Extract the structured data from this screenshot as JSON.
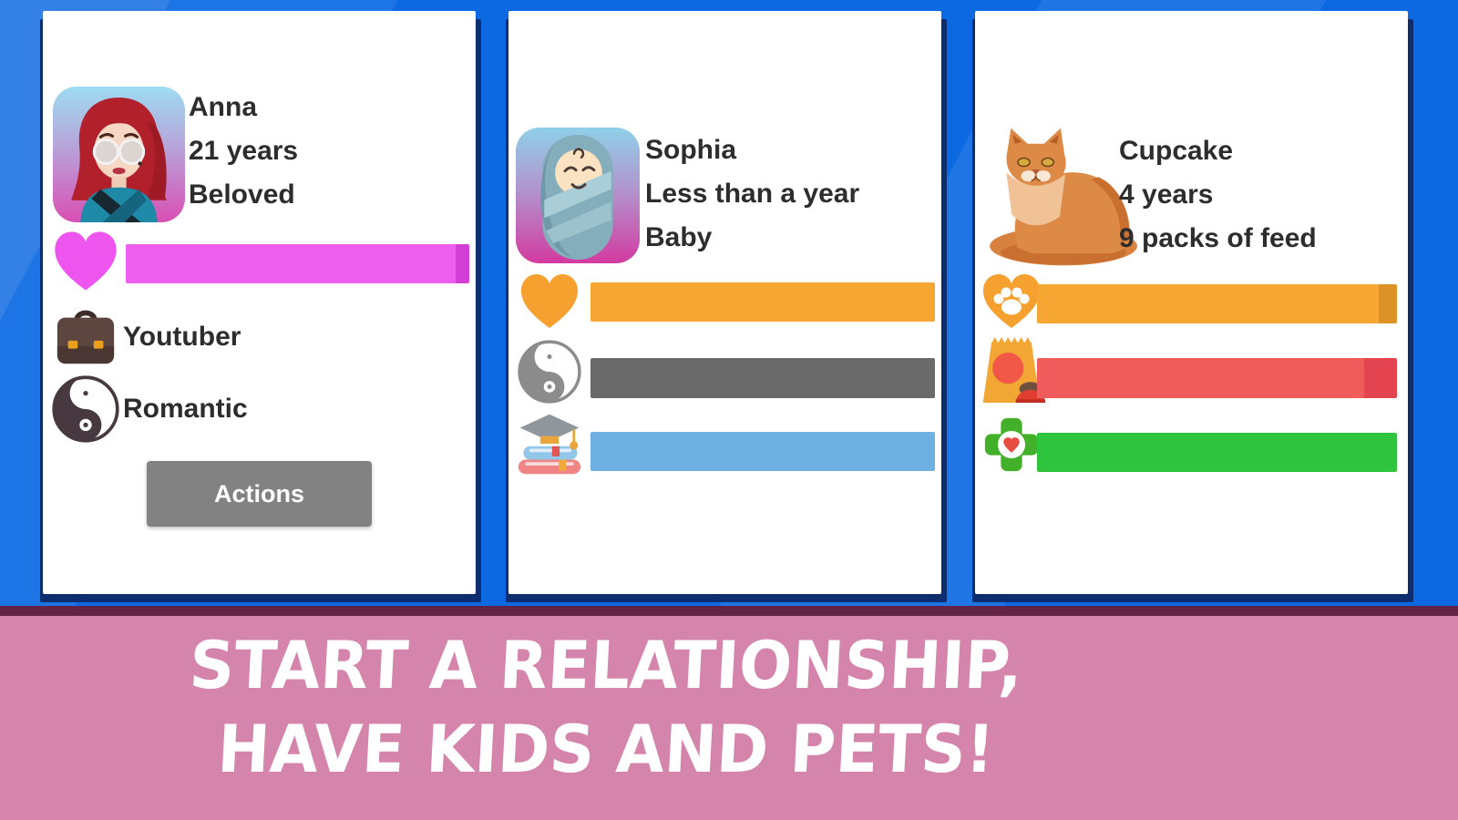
{
  "background": {
    "base_color": "#0c69e2",
    "card_shadow_color": "#0e2d6e"
  },
  "cards": [
    {
      "type": "partner",
      "avatar": "woman-avatar",
      "name": "Anna",
      "age": "21 years",
      "status": "Beloved",
      "stats": [
        {
          "icon": "heart-icon",
          "name": "love",
          "percent": 96,
          "color": "#ee5ff0",
          "cap_color": "#d33fd6"
        }
      ],
      "attributes": [
        {
          "icon": "briefcase-icon",
          "label": "Youtuber"
        },
        {
          "icon": "yin-yang-icon",
          "label": "Romantic"
        }
      ],
      "button_label": "Actions"
    },
    {
      "type": "child",
      "avatar": "baby-avatar",
      "name": "Sophia",
      "age": "Less than a year",
      "status": "Baby",
      "stats": [
        {
          "icon": "heart-icon",
          "name": "love",
          "percent": 100,
          "color": "#f6a733"
        },
        {
          "icon": "yin-yang-icon",
          "name": "mood",
          "percent": 100,
          "color": "#6a6a6a"
        },
        {
          "icon": "education-icon",
          "name": "education",
          "percent": 100,
          "color": "#6fb0e2"
        }
      ]
    },
    {
      "type": "pet",
      "avatar": "cat-illustration",
      "name": "Cupcake",
      "age": "4 years",
      "status": "9 packs of feed",
      "stats": [
        {
          "icon": "paw-heart-icon",
          "name": "happiness",
          "percent": 95,
          "color": "#f6a733",
          "cap_color": "#dd9226"
        },
        {
          "icon": "feed-bag-icon",
          "name": "food",
          "percent": 91,
          "color": "#f05b5b",
          "cap_color": "#e4444f"
        },
        {
          "icon": "vet-cross-icon",
          "name": "health",
          "percent": 100,
          "color": "#2ec43e"
        }
      ]
    }
  ],
  "banner": {
    "line1": "START A RELATIONSHIP,",
    "line2": "HAVE KIDS AND PETS!",
    "bg_color": "#d584ab",
    "divider_color": "#612243",
    "text_color": "#ffffff"
  }
}
